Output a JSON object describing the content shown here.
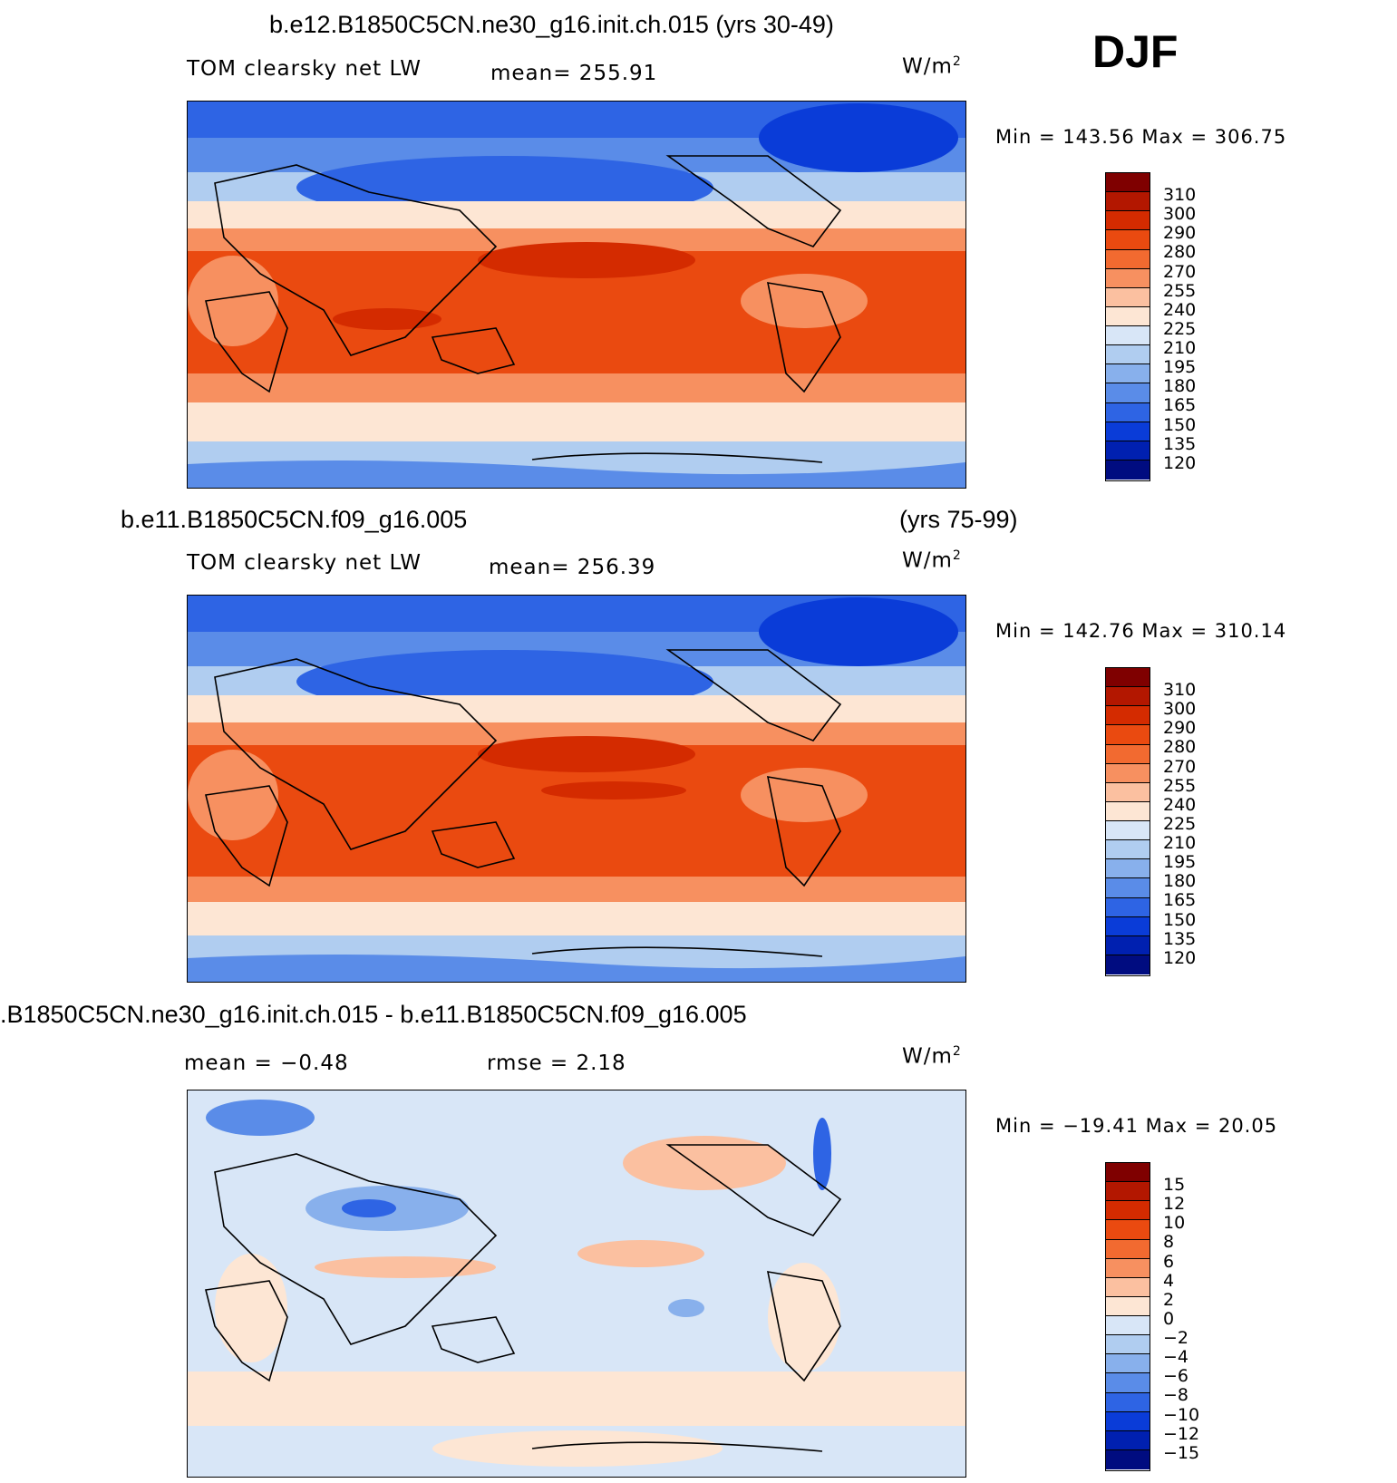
{
  "season": "DJF",
  "panels": [
    {
      "case_title": "b.e12.B1850C5CN.ne30_g16.init.ch.015 (yrs 30-49)",
      "left_label": "TOM clearsky net LW",
      "mid_label": "mean=  255.91",
      "units": "W/m",
      "units_sup": "2",
      "minmax": "Min  =  143.56  Max  =  306.75",
      "colorbar_labels": [
        "310",
        "300",
        "290",
        "280",
        "270",
        "255",
        "240",
        "225",
        "210",
        "195",
        "180",
        "165",
        "150",
        "135",
        "120"
      ],
      "colors": [
        "#7f0000",
        "#b31700",
        "#d42b00",
        "#ea4a10",
        "#f26a30",
        "#f79060",
        "#fbc0a0",
        "#fde6d4",
        "#d8e6f7",
        "#b0cdf0",
        "#88b0ec",
        "#5a8ce8",
        "#2e64e4",
        "#0a3cd8",
        "#0020b0",
        "#000c80"
      ]
    },
    {
      "case_title": "b.e11.B1850C5CN.f09_g16.005",
      "case_years": "(yrs 75-99)",
      "left_label": "TOM clearsky net LW",
      "mid_label": "mean=  256.39",
      "units": "W/m",
      "units_sup": "2",
      "minmax": "Min  =  142.76  Max  =  310.14",
      "colorbar_labels": [
        "310",
        "300",
        "290",
        "280",
        "270",
        "255",
        "240",
        "225",
        "210",
        "195",
        "180",
        "165",
        "150",
        "135",
        "120"
      ],
      "colors": [
        "#7f0000",
        "#b31700",
        "#d42b00",
        "#ea4a10",
        "#f26a30",
        "#f79060",
        "#fbc0a0",
        "#fde6d4",
        "#d8e6f7",
        "#b0cdf0",
        "#88b0ec",
        "#5a8ce8",
        "#2e64e4",
        "#0a3cd8",
        "#0020b0",
        "#000c80"
      ]
    },
    {
      "case_title": ".B1850C5CN.ne30_g16.init.ch.015 - b.e11.B1850C5CN.f09_g16.005",
      "left_label": "mean  =   −0.48",
      "mid_label": "rmse  =     2.18",
      "units": "W/m",
      "units_sup": "2",
      "minmax": "Min  =  −19.41  Max  =    20.05",
      "colorbar_labels": [
        "15",
        "12",
        "10",
        "8",
        "6",
        "4",
        "2",
        "0",
        "−2",
        "−4",
        "−6",
        "−8",
        "−10",
        "−12",
        "−15"
      ],
      "colors": [
        "#7f0000",
        "#b31700",
        "#d42b00",
        "#ea4a10",
        "#f26a30",
        "#f79060",
        "#fbc0a0",
        "#fde6d4",
        "#d8e6f7",
        "#b0cdf0",
        "#88b0ec",
        "#5a8ce8",
        "#2e64e4",
        "#0a3cd8",
        "#0020b0",
        "#000c80"
      ]
    }
  ]
}
